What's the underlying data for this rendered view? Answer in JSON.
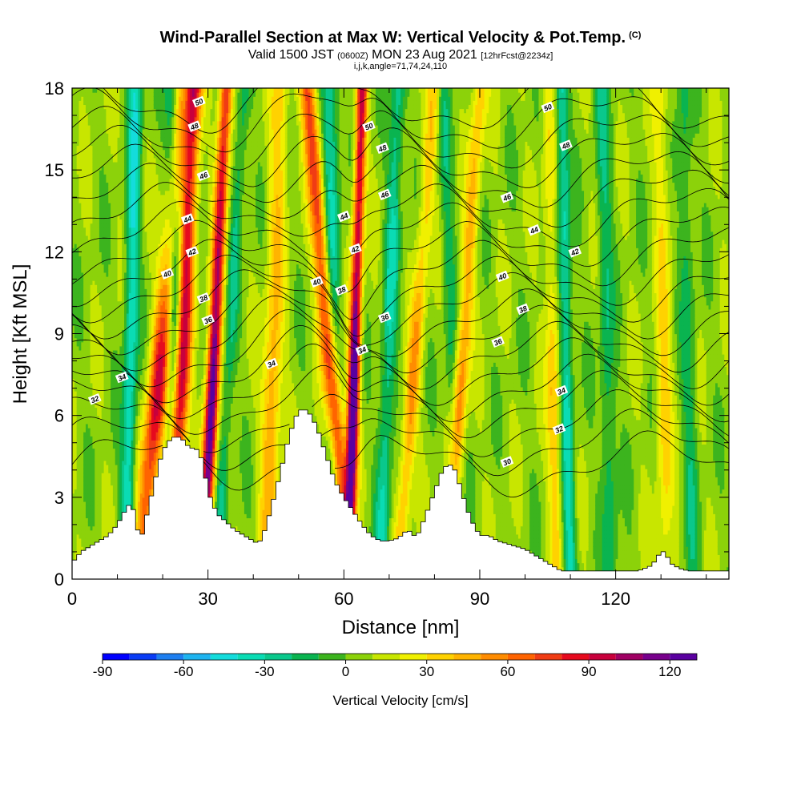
{
  "header": {
    "title": "Wind-Parallel Section at Max W: Vertical Velocity & Pot.Temp.",
    "copyright": "(C)",
    "valid_prefix": "Valid 1500 JST",
    "valid_utc": "(0600Z)",
    "valid_date": "MON 23 Aug 2021",
    "forecast": "[12hrFcst@2234z]",
    "indices": "i,j,k,angle=71,74,24,110"
  },
  "chart_data": {
    "type": "heatmap",
    "xlabel": "Distance [nm]",
    "ylabel": "Height [Kft MSL]",
    "xlim": [
      0,
      145
    ],
    "ylim": [
      0,
      18
    ],
    "xticks": [
      "0",
      "30",
      "60",
      "90",
      "120"
    ],
    "yticks": [
      "0",
      "3",
      "6",
      "9",
      "12",
      "15",
      "18"
    ],
    "colorbar": {
      "label": "Vertical Velocity [cm/s]",
      "range": [
        -90,
        130
      ],
      "step": 10,
      "ticks": [
        "-90",
        "-60",
        "-30",
        "0",
        "30",
        "60",
        "90",
        "120"
      ],
      "colors": [
        "#0000ff",
        "#0a3cf5",
        "#1e7ff0",
        "#1eb4f0",
        "#14dcdc",
        "#0adcb4",
        "#0ac88c",
        "#0ab450",
        "#3cb41e",
        "#8cd20a",
        "#c8e600",
        "#f0f000",
        "#ffd200",
        "#ffb400",
        "#ff8c00",
        "#ff6400",
        "#f03c14",
        "#e60a1e",
        "#c8003c",
        "#a00064",
        "#78008c",
        "#5a00a0"
      ]
    },
    "updraft_axes": [
      {
        "x": [
          15,
          25
        ],
        "w": 2.2,
        "amp": 70
      },
      {
        "x": [
          22,
          27
        ],
        "w": 1.8,
        "amp": 100
      },
      {
        "x": [
          29,
          34
        ],
        "w": 1.4,
        "amp": 110
      },
      {
        "x": [
          43,
          46
        ],
        "w": 2.0,
        "amp": 40
      },
      {
        "x": [
          61,
          52
        ],
        "w": 1.8,
        "amp": 90
      },
      {
        "x": [
          61,
          64
        ],
        "w": 1.2,
        "amp": 120
      },
      {
        "x": [
          72,
          80
        ],
        "w": 1.6,
        "amp": 40
      },
      {
        "x": [
          83,
          90
        ],
        "w": 1.6,
        "amp": 45
      },
      {
        "x": [
          107,
          105
        ],
        "w": 1.5,
        "amp": 30
      },
      {
        "x": [
          131,
          130
        ],
        "w": 1.8,
        "amp": 25
      }
    ],
    "downdraft_axes": [
      {
        "x": [
          12,
          14
        ],
        "w": 1.5,
        "amp": -45
      },
      {
        "x": [
          20,
          25
        ],
        "w": 1.2,
        "amp": -20
      },
      {
        "x": [
          24,
          22
        ],
        "w": 1.6,
        "amp": -35
      },
      {
        "x": [
          32,
          38
        ],
        "w": 1.4,
        "amp": -25
      },
      {
        "x": [
          58,
          57
        ],
        "w": 1.8,
        "amp": -40
      },
      {
        "x": [
          68,
          72
        ],
        "w": 1.6,
        "amp": -35
      },
      {
        "x": [
          85,
          82
        ],
        "w": 1.4,
        "amp": -20
      },
      {
        "x": [
          110,
          108
        ],
        "w": 1.4,
        "amp": -40
      },
      {
        "x": [
          119,
          117
        ],
        "w": 1.6,
        "amp": -25
      },
      {
        "x": [
          137,
          135
        ],
        "w": 1.6,
        "amp": -20
      }
    ],
    "terrain": {
      "x": [
        0,
        2,
        5,
        8,
        10,
        12,
        13,
        14,
        15,
        16,
        17,
        18,
        19,
        20,
        22,
        24,
        25,
        26,
        27,
        28,
        29,
        30,
        31,
        32,
        34,
        36,
        38,
        40,
        41,
        42,
        44,
        46,
        48,
        50,
        52,
        54,
        56,
        58,
        60,
        62,
        64,
        66,
        68,
        70,
        72,
        74,
        75,
        76,
        78,
        80,
        82,
        84,
        85,
        86,
        88,
        90,
        92,
        94,
        96,
        98,
        100,
        102,
        104,
        106,
        108,
        110,
        115,
        120,
        125,
        128,
        130,
        131,
        132,
        134,
        136,
        140,
        145
      ],
      "h": [
        0.6,
        1.0,
        1.3,
        1.6,
        2.0,
        2.6,
        2.8,
        2.3,
        1.3,
        2.0,
        2.7,
        3.4,
        4.1,
        4.7,
        5.2,
        5.2,
        5.0,
        4.8,
        4.8,
        4.7,
        4.2,
        3.2,
        2.8,
        2.4,
        2.1,
        1.8,
        1.6,
        1.4,
        1.3,
        1.5,
        2.6,
        3.9,
        5.3,
        6.2,
        6.2,
        5.6,
        4.6,
        3.6,
        3.0,
        2.5,
        2.0,
        1.6,
        1.4,
        1.4,
        1.5,
        1.8,
        1.7,
        1.5,
        2.3,
        3.2,
        4.1,
        4.2,
        3.8,
        3.2,
        2.2,
        1.6,
        1.6,
        1.4,
        1.3,
        1.2,
        1.1,
        0.9,
        0.7,
        0.5,
        0.3,
        0.3,
        0.3,
        0.3,
        0.3,
        0.5,
        1.0,
        1.0,
        0.6,
        0.4,
        0.3,
        0.3,
        0.3
      ]
    },
    "theta_contours": [
      {
        "level": 30,
        "base": 4.2
      },
      {
        "level": 31,
        "base": 5.0
      },
      {
        "level": 32,
        "base": 5.7
      },
      {
        "level": 33,
        "base": 6.4
      },
      {
        "level": 34,
        "base": 7.0
      },
      {
        "level": 35,
        "base": 7.6
      },
      {
        "level": 36,
        "base": 8.2
      },
      {
        "level": 37,
        "base": 8.8
      },
      {
        "level": 38,
        "base": 9.4
      },
      {
        "level": 39,
        "base": 10.0
      },
      {
        "level": 40,
        "base": 10.6
      },
      {
        "level": 41,
        "base": 11.2
      },
      {
        "level": 42,
        "base": 11.9
      },
      {
        "level": 43,
        "base": 12.6
      },
      {
        "level": 44,
        "base": 13.3
      },
      {
        "level": 45,
        "base": 14.0
      },
      {
        "level": 46,
        "base": 14.7
      },
      {
        "level": 47,
        "base": 15.4
      },
      {
        "level": 48,
        "base": 16.1
      },
      {
        "level": 49,
        "base": 16.8
      },
      {
        "level": 50,
        "base": 17.5
      }
    ],
    "contour_labels": [
      {
        "text": "32",
        "x": 5,
        "y": 6.6
      },
      {
        "text": "34",
        "x": 11,
        "y": 7.4
      },
      {
        "text": "36",
        "x": 30,
        "y": 9.5
      },
      {
        "text": "38",
        "x": 29,
        "y": 10.3
      },
      {
        "text": "40",
        "x": 21,
        "y": 11.2
      },
      {
        "text": "42",
        "x": 26.5,
        "y": 12.0
      },
      {
        "text": "44",
        "x": 25.5,
        "y": 13.2
      },
      {
        "text": "46",
        "x": 29,
        "y": 14.8
      },
      {
        "text": "48",
        "x": 27,
        "y": 16.6
      },
      {
        "text": "50",
        "x": 28,
        "y": 17.5
      },
      {
        "text": "34",
        "x": 44,
        "y": 7.9
      },
      {
        "text": "40",
        "x": 54,
        "y": 10.9
      },
      {
        "text": "38",
        "x": 59.5,
        "y": 10.6
      },
      {
        "text": "44",
        "x": 60,
        "y": 13.3
      },
      {
        "text": "42",
        "x": 62.5,
        "y": 12.1
      },
      {
        "text": "34",
        "x": 64,
        "y": 8.4
      },
      {
        "text": "36",
        "x": 69,
        "y": 9.6
      },
      {
        "text": "50",
        "x": 65.5,
        "y": 16.6
      },
      {
        "text": "48",
        "x": 68.5,
        "y": 15.8
      },
      {
        "text": "46",
        "x": 69,
        "y": 14.1
      },
      {
        "text": "50",
        "x": 105,
        "y": 17.3
      },
      {
        "text": "48",
        "x": 109,
        "y": 15.9
      },
      {
        "text": "46",
        "x": 96,
        "y": 14.0
      },
      {
        "text": "44",
        "x": 102,
        "y": 12.8
      },
      {
        "text": "42",
        "x": 111,
        "y": 12.0
      },
      {
        "text": "40",
        "x": 95,
        "y": 11.1
      },
      {
        "text": "38",
        "x": 99.5,
        "y": 9.9
      },
      {
        "text": "36",
        "x": 94,
        "y": 8.7
      },
      {
        "text": "34",
        "x": 108,
        "y": 6.9
      },
      {
        "text": "32",
        "x": 107.5,
        "y": 5.5
      },
      {
        "text": "30",
        "x": 96,
        "y": 4.3
      }
    ]
  }
}
